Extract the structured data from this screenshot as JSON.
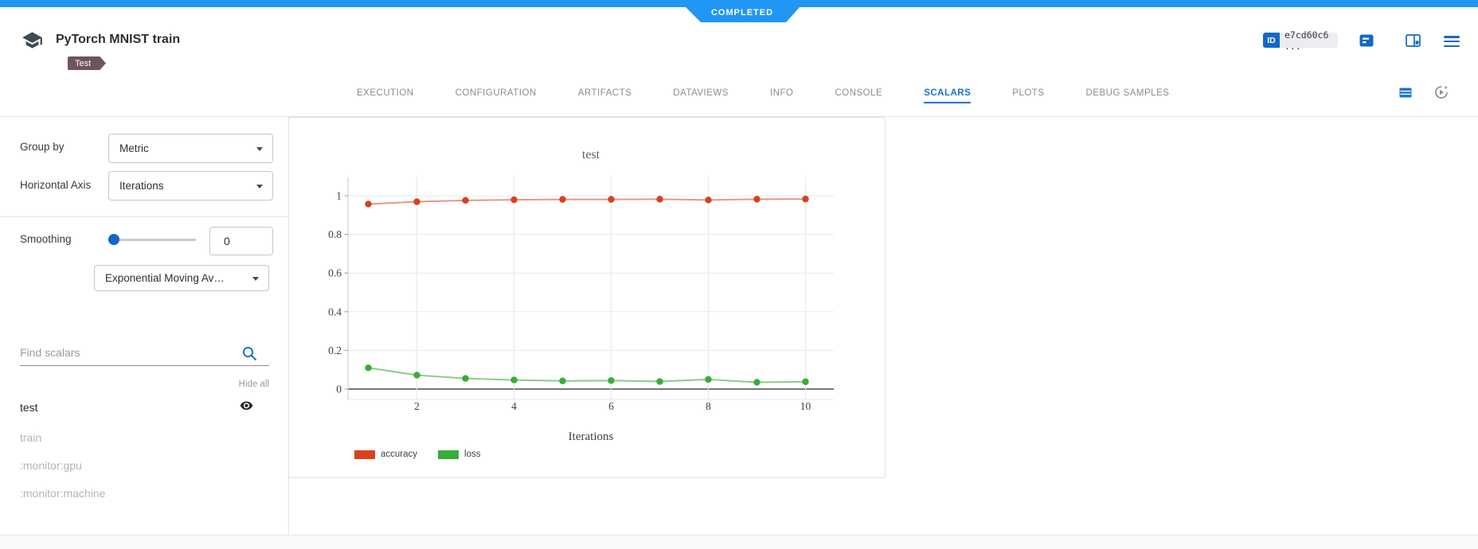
{
  "header": {
    "title": "PyTorch MNIST train",
    "tag": "Test",
    "status": "COMPLETED",
    "id_label": "ID",
    "id_value": "e7cd60c6 ..."
  },
  "tabs": {
    "items": [
      {
        "label": "EXECUTION"
      },
      {
        "label": "CONFIGURATION"
      },
      {
        "label": "ARTIFACTS"
      },
      {
        "label": "DATAVIEWS"
      },
      {
        "label": "INFO"
      },
      {
        "label": "CONSOLE"
      },
      {
        "label": "SCALARS"
      },
      {
        "label": "PLOTS"
      },
      {
        "label": "DEBUG SAMPLES"
      }
    ],
    "active": "SCALARS"
  },
  "sidebar": {
    "group_by": {
      "label": "Group by",
      "value": "Metric"
    },
    "horizontal_axis": {
      "label": "Horizontal Axis",
      "value": "Iterations"
    },
    "smoothing": {
      "label": "Smoothing",
      "value": "0",
      "type_value": "Exponential Moving Av…"
    },
    "search": {
      "placeholder": "Find scalars"
    },
    "hide_all_label": "Hide all",
    "metrics": [
      {
        "name": "test",
        "visible": true
      },
      {
        "name": "train",
        "visible": false
      },
      {
        "name": ":monitor:gpu",
        "visible": false
      },
      {
        "name": ":monitor:machine",
        "visible": false
      }
    ]
  },
  "colors": {
    "topbar_blue": "#2196f3",
    "accent_blue": "#1872d0",
    "icon_blue": "#1467c8",
    "tag_maroon": "#6d5559",
    "grid": "#e8e8ee"
  },
  "chart_data": {
    "type": "line",
    "title": "test",
    "xlabel": "Iterations",
    "x": [
      1,
      2,
      3,
      4,
      5,
      6,
      7,
      8,
      9,
      10
    ],
    "xticks": [
      2,
      4,
      6,
      8,
      10
    ],
    "yticks": [
      0,
      0.2,
      0.4,
      0.6,
      0.8,
      1
    ],
    "xlim": [
      0.4,
      10.6
    ],
    "ylim": [
      -0.054,
      1.1
    ],
    "grid": true,
    "legend_position": "bottom-left",
    "series": [
      {
        "name": "accuracy",
        "color": "#d9411e",
        "line_color": "rgba(217,65,30,0.55)",
        "values": [
          0.957,
          0.969,
          0.976,
          0.979,
          0.981,
          0.981,
          0.982,
          0.978,
          0.982,
          0.983
        ]
      },
      {
        "name": "loss",
        "color": "#38ad38",
        "line_color": "rgba(56,173,56,0.6)",
        "values": [
          0.11,
          0.072,
          0.055,
          0.047,
          0.042,
          0.044,
          0.039,
          0.05,
          0.035,
          0.038
        ]
      }
    ]
  }
}
